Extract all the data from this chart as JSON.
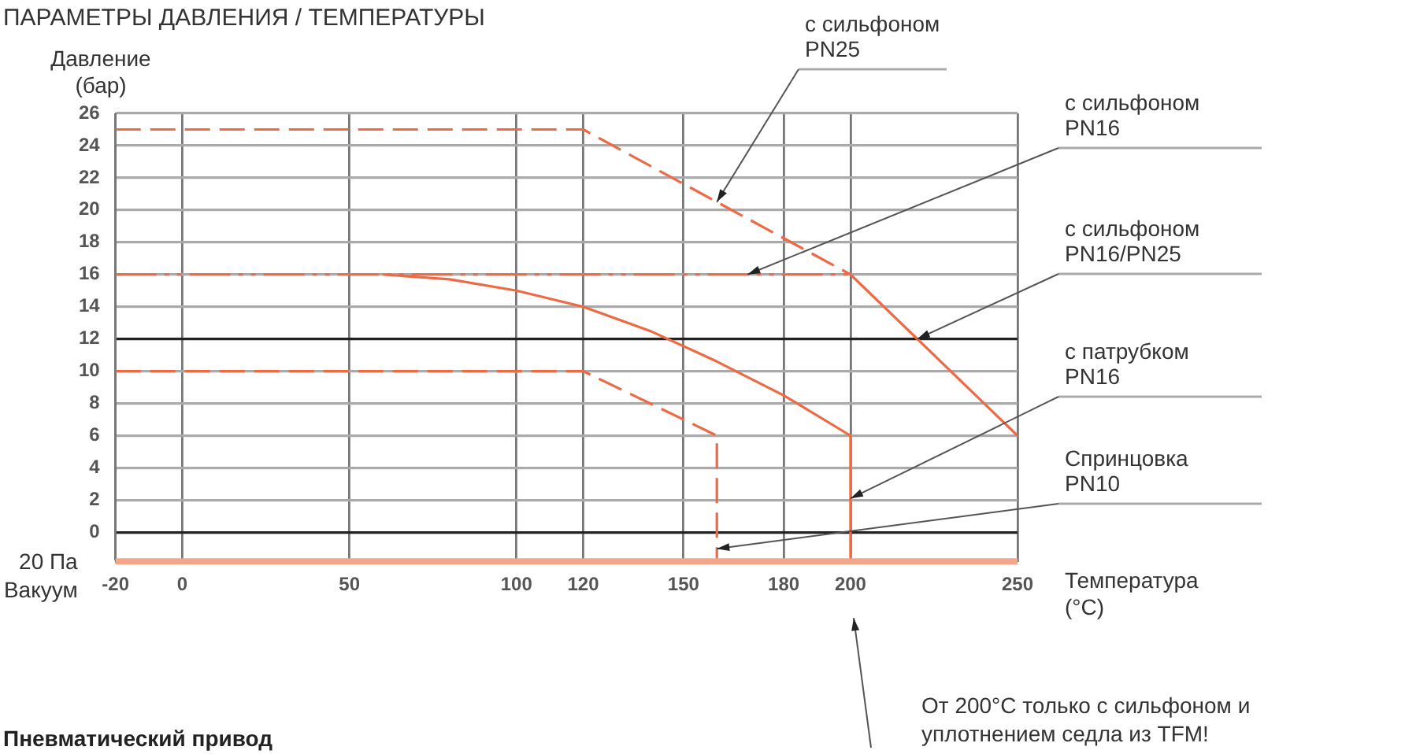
{
  "chart_data": {
    "type": "line",
    "title": "ПАРАМЕТРЫ ДАВЛЕНИЯ / ТЕМПЕРАТУРЫ",
    "xlabel": "Температура (°C)",
    "ylabel": "Давление (бар)",
    "xlim": [
      -20,
      250
    ],
    "xticks": [
      -20,
      0,
      50,
      100,
      120,
      150,
      180,
      200,
      250
    ],
    "ylim": [
      -1.8,
      26
    ],
    "yticks": [
      0,
      2,
      4,
      6,
      8,
      10,
      12,
      14,
      16,
      18,
      20,
      22,
      24,
      26
    ],
    "grid": true,
    "legend": false,
    "series": [
      {
        "name": "с сильфоном PN25",
        "color": "#ee6a45",
        "line_style": "dashed",
        "x": [
          -20,
          120,
          200
        ],
        "values": [
          25,
          25,
          16
        ]
      },
      {
        "name": "с сильфоном PN16",
        "color": "#ee6a45",
        "line_style": "dotted",
        "x": [
          -20,
          200
        ],
        "values": [
          16,
          16
        ]
      },
      {
        "name": "с сильфоном PN16/PN25",
        "color": "#ee6a45",
        "line_style": "solid",
        "x": [
          200,
          250
        ],
        "values": [
          16,
          6
        ]
      },
      {
        "name": "с патрубком PN16",
        "color": "#ee6a45",
        "line_style": "solid",
        "x": [
          60,
          80,
          100,
          120,
          140,
          160,
          180,
          200,
          200
        ],
        "values": [
          16,
          15.7,
          15,
          14,
          12.5,
          10.6,
          8.5,
          6,
          -1.8
        ]
      },
      {
        "name": "Спринцовка PN10",
        "color": "#ee6a45",
        "line_style": "dashed",
        "x": [
          -20,
          120,
          160,
          160
        ],
        "values": [
          10,
          10,
          6,
          -1.8
        ]
      }
    ],
    "ref_lines": [
      {
        "axis": "y",
        "value": -1.8,
        "label": "20 Па Вакуум",
        "color": "#f5a58a"
      }
    ],
    "annotations": [
      "От 200°C только с сильфоном и уплотнением седла из TFM!",
      "Пневматический привод"
    ]
  }
}
